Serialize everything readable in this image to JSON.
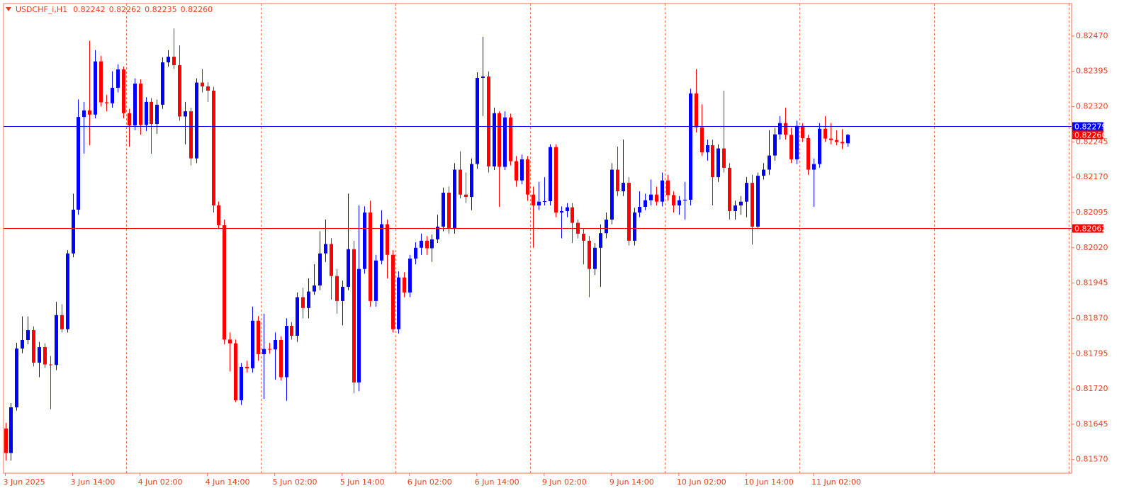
{
  "chart_data": {
    "type": "candlestick",
    "title": "USDCHF_i,H1",
    "last_bar_labels": [
      "0.82242",
      "0.82262",
      "0.82235",
      "0.82260"
    ],
    "categories": [
      "3 Jun 2025",
      null,
      null,
      null,
      null,
      null,
      null,
      null,
      null,
      null,
      null,
      null,
      "3 Jun 14:00",
      null,
      null,
      null,
      null,
      null,
      null,
      null,
      null,
      null,
      null,
      null,
      "4 Jun 02:00",
      null,
      null,
      null,
      null,
      null,
      null,
      null,
      null,
      null,
      null,
      null,
      "4 Jun 14:00",
      null,
      null,
      null,
      null,
      null,
      null,
      null,
      null,
      null,
      null,
      null,
      "5 Jun 02:00",
      null,
      null,
      null,
      null,
      null,
      null,
      null,
      null,
      null,
      null,
      null,
      "5 Jun 14:00",
      null,
      null,
      null,
      null,
      null,
      null,
      null,
      null,
      null,
      null,
      null,
      "6 Jun 02:00",
      null,
      null,
      null,
      null,
      null,
      null,
      null,
      null,
      null,
      null,
      null,
      "6 Jun 14:00",
      null,
      null,
      null,
      null,
      null,
      null,
      null,
      null,
      null,
      null,
      null,
      "9 Jun 02:00",
      null,
      null,
      null,
      null,
      null,
      null,
      null,
      null,
      null,
      null,
      null,
      "9 Jun 14:00",
      null,
      null,
      null,
      null,
      null,
      null,
      null,
      null,
      null,
      null,
      null,
      "10 Jun 02:00",
      null,
      null,
      null,
      null,
      null,
      null,
      null,
      null,
      null,
      null,
      null,
      "10 Jun 14:00",
      null,
      null,
      null,
      null,
      null,
      null,
      null,
      null,
      null,
      null,
      null,
      "11 Jun 02:00",
      null,
      null,
      null,
      null,
      null,
      null
    ],
    "open": [
      0.81636,
      0.81584,
      0.81681,
      0.81806,
      0.81824,
      0.81845,
      0.81776,
      0.81809,
      0.81772,
      0.81771,
      0.81877,
      0.81847,
      0.82008,
      0.82101,
      0.82298,
      0.82312,
      0.82303,
      0.82416,
      0.82329,
      0.82327,
      0.8236,
      0.82399,
      0.82306,
      0.8228,
      0.82369,
      0.82281,
      0.8233,
      0.82283,
      0.82324,
      0.82414,
      0.82426,
      0.82408,
      0.82299,
      0.8231,
      0.8221,
      0.82371,
      0.82363,
      0.82354,
      0.8211,
      0.82068,
      0.81825,
      0.81817,
      0.81696,
      0.81767,
      0.81764,
      0.81865,
      0.81794,
      0.81805,
      0.81804,
      0.81824,
      0.81745,
      0.81854,
      0.81833,
      0.81915,
      0.81892,
      0.81927,
      0.8194,
      0.82008,
      0.82028,
      0.8196,
      0.81907,
      0.81937,
      0.82017,
      0.81734,
      0.81975,
      0.82095,
      0.81907,
      0.81993,
      0.8207,
      0.82005,
      0.81847,
      0.81957,
      0.81925,
      0.81997,
      0.8202,
      0.82035,
      0.82019,
      0.82038,
      0.82065,
      0.82137,
      0.82062,
      0.82186,
      0.82133,
      0.82128,
      0.82198,
      0.82381,
      0.82384,
      0.82193,
      0.82306,
      0.82192,
      0.82297,
      0.82204,
      0.82163,
      0.82208,
      0.82133,
      0.8211,
      0.82118,
      0.82119,
      0.82234,
      0.82095,
      0.82098,
      0.82106,
      0.82073,
      0.8205,
      0.82035,
      0.81975,
      0.8202,
      0.82051,
      0.8208,
      0.82186,
      0.8214,
      0.82158,
      0.82035,
      0.82095,
      0.82107,
      0.82121,
      0.82133,
      0.82118,
      0.82163,
      0.82132,
      0.8211,
      0.82121,
      0.82122,
      0.82348,
      0.82276,
      0.82223,
      0.82238,
      0.8217,
      0.82231,
      0.8219,
      0.82098,
      0.8211,
      0.82118,
      0.82158,
      0.82065,
      0.82173,
      0.82186,
      0.82216,
      0.82261,
      0.82285,
      0.8226,
      0.82208,
      0.82279,
      0.82253,
      0.82186,
      0.82198,
      0.82273,
      0.82252,
      0.82249,
      0.82245,
      0.82242
    ],
    "high": [
      0.81648,
      0.8169,
      0.81818,
      0.81874,
      0.81874,
      0.81853,
      0.8182,
      0.81817,
      0.8179,
      0.81905,
      0.819,
      0.82015,
      0.82135,
      0.82335,
      0.8233,
      0.8246,
      0.8244,
      0.82428,
      0.82345,
      0.82395,
      0.8241,
      0.82405,
      0.82315,
      0.8238,
      0.82378,
      0.8234,
      0.82338,
      0.82335,
      0.82425,
      0.8244,
      0.82486,
      0.8245,
      0.8233,
      0.82318,
      0.8238,
      0.824,
      0.82372,
      0.82362,
      0.82118,
      0.8208,
      0.8184,
      0.81825,
      0.81775,
      0.8178,
      0.81895,
      0.81875,
      0.8188,
      0.81818,
      0.8184,
      0.81832,
      0.8187,
      0.81862,
      0.81925,
      0.81935,
      0.81955,
      0.81985,
      0.82055,
      0.8208,
      0.8204,
      0.81975,
      0.8195,
      0.82135,
      0.82035,
      0.8211,
      0.82108,
      0.8212,
      0.82005,
      0.821,
      0.8208,
      0.82015,
      0.8197,
      0.81968,
      0.82005,
      0.82032,
      0.8205,
      0.82045,
      0.82048,
      0.8209,
      0.82148,
      0.8215,
      0.822,
      0.82225,
      0.8218,
      0.8221,
      0.82393,
      0.82468,
      0.82395,
      0.82318,
      0.8231,
      0.8231,
      0.82305,
      0.82215,
      0.82218,
      0.82215,
      0.8215,
      0.8216,
      0.8217,
      0.8224,
      0.8224,
      0.82108,
      0.82115,
      0.82115,
      0.8208,
      0.8206,
      0.82045,
      0.8203,
      0.8207,
      0.82095,
      0.822,
      0.82235,
      0.8225,
      0.8217,
      0.82105,
      0.8214,
      0.82135,
      0.82165,
      0.8215,
      0.8218,
      0.82175,
      0.8214,
      0.8213,
      0.8216,
      0.82358,
      0.824,
      0.82325,
      0.8225,
      0.8225,
      0.8224,
      0.82354,
      0.822,
      0.8212,
      0.8213,
      0.8217,
      0.82175,
      0.8218,
      0.822,
      0.8227,
      0.82275,
      0.823,
      0.82318,
      0.82275,
      0.8229,
      0.82285,
      0.8226,
      0.8221,
      0.82285,
      0.823,
      0.82285,
      0.8227,
      0.82272,
      0.82262
    ],
    "low": [
      0.81568,
      0.81568,
      0.81674,
      0.81796,
      0.81815,
      0.81768,
      0.81745,
      0.81765,
      0.81677,
      0.8176,
      0.8184,
      0.8184,
      0.82,
      0.8209,
      0.8222,
      0.82238,
      0.82295,
      0.8232,
      0.8231,
      0.82318,
      0.8235,
      0.82295,
      0.82235,
      0.8227,
      0.8226,
      0.82268,
      0.8222,
      0.82262,
      0.82315,
      0.82405,
      0.824,
      0.8229,
      0.8224,
      0.82195,
      0.822,
      0.8235,
      0.8233,
      0.82095,
      0.8206,
      0.81815,
      0.81757,
      0.81692,
      0.81686,
      0.81755,
      0.81755,
      0.8178,
      0.81699,
      0.81795,
      0.8174,
      0.81738,
      0.81695,
      0.81825,
      0.8182,
      0.8187,
      0.8187,
      0.8192,
      0.8193,
      0.8199,
      0.8191,
      0.8188,
      0.81855,
      0.8193,
      0.81711,
      0.81715,
      0.81965,
      0.81895,
      0.81895,
      0.81985,
      0.81955,
      0.8184,
      0.81838,
      0.81915,
      0.81915,
      0.81985,
      0.82005,
      0.82005,
      0.8199,
      0.8203,
      0.82055,
      0.8205,
      0.8205,
      0.82125,
      0.82115,
      0.821,
      0.82188,
      0.823,
      0.8218,
      0.82185,
      0.82107,
      0.82185,
      0.82195,
      0.8215,
      0.82155,
      0.8212,
      0.8202,
      0.821,
      0.8211,
      0.8211,
      0.82085,
      0.8204,
      0.82085,
      0.8203,
      0.8204,
      0.81985,
      0.81915,
      0.81962,
      0.81937,
      0.8204,
      0.8207,
      0.8213,
      0.8213,
      0.82025,
      0.82025,
      0.82085,
      0.821,
      0.8211,
      0.8211,
      0.82108,
      0.8212,
      0.82095,
      0.8209,
      0.8208,
      0.8211,
      0.82265,
      0.82215,
      0.82205,
      0.8211,
      0.8216,
      0.8218,
      0.8208,
      0.8208,
      0.8209,
      0.82085,
      0.82027,
      0.8206,
      0.82165,
      0.82175,
      0.82205,
      0.8225,
      0.8225,
      0.822,
      0.82198,
      0.82245,
      0.82175,
      0.82107,
      0.8219,
      0.82245,
      0.8224,
      0.82238,
      0.8223,
      0.82235
    ],
    "close": [
      0.81584,
      0.81681,
      0.81806,
      0.81824,
      0.81845,
      0.81776,
      0.81809,
      0.81772,
      0.81771,
      0.81877,
      0.81847,
      0.82008,
      0.82101,
      0.82298,
      0.82312,
      0.82303,
      0.82416,
      0.82329,
      0.82327,
      0.8236,
      0.82399,
      0.82306,
      0.8228,
      0.82369,
      0.82281,
      0.8233,
      0.82283,
      0.82324,
      0.82414,
      0.82426,
      0.82408,
      0.82299,
      0.8231,
      0.8221,
      0.82371,
      0.82363,
      0.82354,
      0.8211,
      0.82068,
      0.81825,
      0.81817,
      0.81696,
      0.81767,
      0.81764,
      0.81865,
      0.81794,
      0.81805,
      0.81804,
      0.81824,
      0.81745,
      0.81854,
      0.81833,
      0.81915,
      0.81892,
      0.81927,
      0.8194,
      0.82008,
      0.82028,
      0.8196,
      0.81907,
      0.81937,
      0.82017,
      0.81734,
      0.81975,
      0.82095,
      0.81907,
      0.81993,
      0.8207,
      0.82005,
      0.81847,
      0.81957,
      0.81925,
      0.81997,
      0.8202,
      0.82035,
      0.82019,
      0.82038,
      0.82065,
      0.82137,
      0.82062,
      0.82186,
      0.82133,
      0.82128,
      0.82198,
      0.82381,
      0.82384,
      0.82193,
      0.82306,
      0.82192,
      0.82297,
      0.82204,
      0.82163,
      0.82208,
      0.82133,
      0.8211,
      0.82118,
      0.82119,
      0.82234,
      0.82095,
      0.82098,
      0.82106,
      0.82073,
      0.8205,
      0.82035,
      0.81975,
      0.8202,
      0.82051,
      0.8208,
      0.82186,
      0.8214,
      0.82158,
      0.82035,
      0.82095,
      0.82107,
      0.82121,
      0.82133,
      0.82118,
      0.82163,
      0.82132,
      0.8211,
      0.82121,
      0.82122,
      0.82348,
      0.82276,
      0.82223,
      0.82238,
      0.8217,
      0.82231,
      0.8219,
      0.82098,
      0.8211,
      0.82118,
      0.82158,
      0.82065,
      0.82173,
      0.82186,
      0.82216,
      0.82261,
      0.82285,
      0.8226,
      0.82208,
      0.82279,
      0.82253,
      0.82186,
      0.82198,
      0.82273,
      0.82252,
      0.82249,
      0.82245,
      0.82242,
      0.8226
    ],
    "up_color": "#0000ff",
    "down_color": "#ff0000",
    "ylim": [
      0.81541,
      0.82539
    ],
    "yticks": [
      {
        "value": 0.8247,
        "label": "0.82470"
      },
      0.82395,
      {
        "value": 0.8232,
        "label": "0.82320"
      },
      0.82245,
      {
        "value": 0.8217,
        "label": "0.82170"
      },
      0.82095,
      {
        "value": 0.8202,
        "label": "0.82020"
      },
      0.81945,
      {
        "value": 0.8187,
        "label": "0.81870"
      },
      0.81795,
      {
        "value": 0.8172,
        "label": "0.81720"
      },
      0.81645,
      {
        "value": 0.8157,
        "label": "0.81570"
      }
    ],
    "price_lines": [
      {
        "value": 0.82279,
        "color": "#0000ff"
      },
      {
        "value": 0.82062,
        "color": "#ff0000"
      }
    ]
  }
}
